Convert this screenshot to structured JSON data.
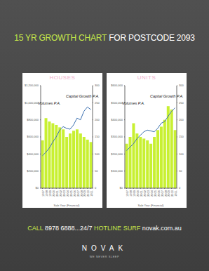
{
  "header": {
    "title": "15 YR GROWTH CHART",
    "subtitle": "FOR POSTCODE 2093",
    "color": "#c6e84a",
    "subtitle_color": "#ffffff"
  },
  "footer": {
    "parts": [
      {
        "text": "CALL",
        "color": "#c6e84a"
      },
      {
        "text": "8978 6888...24/7",
        "color": "#ffffff"
      },
      {
        "text": "HOTLINE",
        "color": "#c6e84a"
      },
      {
        "text": "SURF",
        "color": "#c6e84a"
      },
      {
        "text": "novak.com.au",
        "color": "#ffffff"
      }
    ],
    "brand": "NOVAK",
    "tagline": "WE NEVER SLEEP"
  },
  "chart_data": [
    {
      "type": "bar",
      "title": "HOUSES",
      "xlabel": "Sale Year (Financial)",
      "categories": [
        "1997",
        "1998",
        "1999",
        "2000",
        "2001",
        "2002",
        "2003",
        "2004",
        "2005",
        "2006",
        "2007",
        "2008",
        "2009",
        "2010",
        "2011"
      ],
      "series": [
        {
          "name": "Volumes P.A.",
          "type": "bar",
          "axis": "y2",
          "color": "#c8f032",
          "values": [
            140,
            205,
            195,
            190,
            185,
            178,
            172,
            150,
            160,
            168,
            172,
            160,
            150,
            142,
            135
          ]
        },
        {
          "name": "Capital Growth P.A.",
          "type": "line",
          "color": "#3a6fb0",
          "values": [
            380000,
            420000,
            470000,
            540000,
            600000,
            680000,
            720000,
            700000,
            690000,
            740000,
            820000,
            800000,
            900000,
            950000,
            920000
          ]
        }
      ],
      "ylim": [
        0,
        1200000
      ],
      "yticks": [
        {
          "value": 0,
          "label": "$0"
        },
        {
          "value": 200000,
          "label": "$200,000"
        },
        {
          "value": 400000,
          "label": "$400,000"
        },
        {
          "value": 600000,
          "label": "$600,000"
        },
        {
          "value": 800000,
          "label": "$800,000"
        },
        {
          "value": 1000000,
          "label": "$1,000,000"
        },
        {
          "value": 1200000,
          "label": "$1,200,000"
        }
      ],
      "y2lim": [
        0,
        300
      ],
      "y2ticks": [
        0,
        50,
        100,
        150,
        200,
        250,
        300
      ]
    },
    {
      "type": "bar",
      "title": "UNITS",
      "xlabel": "Sale Year (Financial)",
      "categories": [
        "1997",
        "1998",
        "1999",
        "2000",
        "2001",
        "2002",
        "2003",
        "2004",
        "2005",
        "2006",
        "2007",
        "2008",
        "2009",
        "2010",
        "2011"
      ],
      "series": [
        {
          "name": "Volumes P.A.",
          "type": "bar",
          "axis": "y2",
          "color": "#c8f032",
          "values": [
            130,
            150,
            190,
            160,
            150,
            145,
            140,
            130,
            150,
            170,
            180,
            200,
            240,
            230,
            170
          ]
        },
        {
          "name": "Capital Growth P.A.",
          "type": "line",
          "color": "#3a6fb0",
          "values": [
            220000,
            240000,
            260000,
            290000,
            310000,
            330000,
            340000,
            335000,
            330000,
            350000,
            380000,
            390000,
            420000,
            450000,
            470000
          ]
        }
      ],
      "ylim": [
        0,
        600000
      ],
      "yticks": [
        {
          "value": 0,
          "label": "$0"
        },
        {
          "value": 100000,
          "label": "$100,000"
        },
        {
          "value": 200000,
          "label": "$200,000"
        },
        {
          "value": 300000,
          "label": "$300,000"
        },
        {
          "value": 400000,
          "label": "$400,000"
        },
        {
          "value": 500000,
          "label": "$500,000"
        },
        {
          "value": 600000,
          "label": "$600,000"
        }
      ],
      "y2lim": [
        0,
        300
      ],
      "y2ticks": [
        0,
        50,
        100,
        150,
        200,
        250,
        300
      ]
    }
  ]
}
